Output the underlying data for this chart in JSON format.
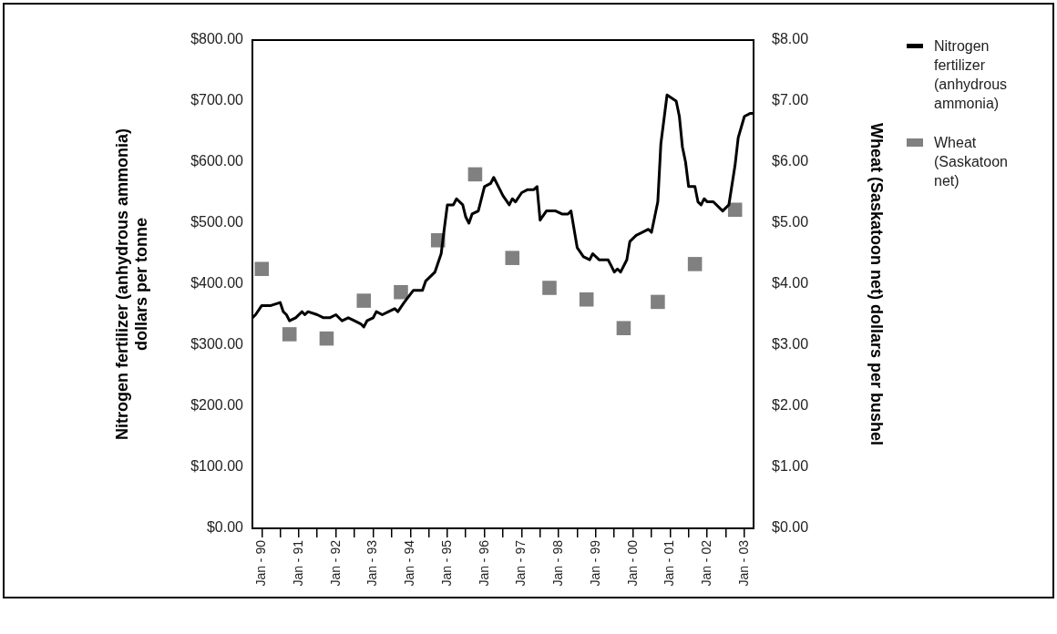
{
  "chart_data": {
    "type": "line",
    "ylabel": "Nitrogen fertilizer (anhydrous ammonia)\ndollars per tonne",
    "y2label": "Wheat (Saskatoon net) dollars per bushel",
    "x": [
      "1989-10",
      "1989-11",
      "1990-01",
      "1990-04",
      "1990-07",
      "1990-08",
      "1990-09",
      "1990-10",
      "1990-12",
      "1991-02",
      "1991-03",
      "1991-04",
      "1991-07",
      "1991-09",
      "1991-11",
      "1992-01",
      "1992-03",
      "1992-05",
      "1992-07",
      "1992-09",
      "1992-10",
      "1992-11",
      "1993-01",
      "1993-02",
      "1993-04",
      "1993-06",
      "1993-08",
      "1993-09",
      "1993-11",
      "1994-02",
      "1994-05",
      "1994-06",
      "1994-09",
      "1994-11",
      "1994-12",
      "1995-01",
      "1995-03",
      "1995-04",
      "1995-06",
      "1995-07",
      "1995-08",
      "1995-09",
      "1995-11",
      "1996-01",
      "1996-03",
      "1996-04",
      "1996-05",
      "1996-07",
      "1996-09",
      "1996-10",
      "1996-11",
      "1997-01",
      "1997-03",
      "1997-05",
      "1997-06",
      "1997-07",
      "1997-09",
      "1997-12",
      "1998-02",
      "1998-04",
      "1998-05",
      "1998-07",
      "1998-09",
      "1998-11",
      "1998-12",
      "1999-02",
      "1999-05",
      "1999-06",
      "1999-07",
      "1999-08",
      "1999-09",
      "1999-11",
      "1999-12",
      "2000-02",
      "2000-06",
      "2000-07",
      "2000-08",
      "2000-09",
      "2000-10",
      "2000-12",
      "2001-03",
      "2001-04",
      "2001-05",
      "2001-06",
      "2001-07",
      "2001-09",
      "2001-10",
      "2001-11",
      "2001-12",
      "2002-01",
      "2002-03",
      "2002-06",
      "2002-08",
      "2002-10",
      "2002-11",
      "2003-01",
      "2003-03",
      "2003-04"
    ],
    "series": [
      {
        "name": "Nitrogen fertilizer (anhydrous ammonia)",
        "color": "#000000",
        "values": [
          345,
          350,
          365,
          365,
          370,
          355,
          350,
          340,
          345,
          355,
          350,
          355,
          350,
          345,
          345,
          350,
          340,
          345,
          340,
          335,
          330,
          340,
          345,
          355,
          350,
          355,
          360,
          355,
          370,
          390,
          390,
          405,
          420,
          450,
          490,
          530,
          530,
          540,
          530,
          510,
          500,
          515,
          520,
          560,
          565,
          575,
          565,
          545,
          530,
          540,
          535,
          550,
          555,
          555,
          560,
          505,
          520,
          520,
          515,
          515,
          520,
          460,
          445,
          440,
          450,
          440,
          440,
          430,
          420,
          425,
          420,
          440,
          470,
          480,
          490,
          485,
          510,
          535,
          630,
          710,
          700,
          675,
          625,
          600,
          560,
          560,
          535,
          530,
          540,
          535,
          535,
          520,
          530,
          595,
          640,
          675,
          680,
          680
        ]
      },
      {
        "name": "Wheat (Saskatoon net)",
        "type": "scatter",
        "axis": "y2",
        "marker": "square",
        "color": "#808080",
        "x": [
          "1990-01",
          "1990-10",
          "1991-10",
          "1992-10",
          "1993-10",
          "1994-10",
          "1995-10",
          "1996-10",
          "1997-10",
          "1998-10",
          "1999-10",
          "2000-09",
          "2001-09",
          "2002-10"
        ],
        "values": [
          4.25,
          3.18,
          3.11,
          3.73,
          3.87,
          4.72,
          5.8,
          4.43,
          3.94,
          3.75,
          3.28,
          3.71,
          4.33,
          5.22
        ]
      }
    ],
    "xlim": [
      "1989-10",
      "2003-04"
    ],
    "xticks": [
      {
        "value": "1990-01",
        "label": "Jan - 90"
      },
      {
        "value": "1990-07",
        "label": null
      },
      {
        "value": "1991-01",
        "label": "Jan - 91"
      },
      {
        "value": "1991-07",
        "label": null
      },
      {
        "value": "1992-01",
        "label": "Jan - 92"
      },
      {
        "value": "1992-07",
        "label": null
      },
      {
        "value": "1993-01",
        "label": "Jan - 93"
      },
      {
        "value": "1993-07",
        "label": null
      },
      {
        "value": "1994-01",
        "label": "Jan - 94"
      },
      {
        "value": "1994-07",
        "label": null
      },
      {
        "value": "1995-01",
        "label": "Jan - 95"
      },
      {
        "value": "1995-07",
        "label": null
      },
      {
        "value": "1996-01",
        "label": "Jan - 96"
      },
      {
        "value": "1996-07",
        "label": null
      },
      {
        "value": "1997-01",
        "label": "Jan - 97"
      },
      {
        "value": "1997-07",
        "label": null
      },
      {
        "value": "1998-01",
        "label": "Jan - 98"
      },
      {
        "value": "1998-07",
        "label": null
      },
      {
        "value": "1999-01",
        "label": "Jan - 99"
      },
      {
        "value": "1999-07",
        "label": null
      },
      {
        "value": "2000-01",
        "label": "Jan - 00"
      },
      {
        "value": "2000-07",
        "label": null
      },
      {
        "value": "2001-01",
        "label": "Jan - 01"
      },
      {
        "value": "2001-07",
        "label": null
      },
      {
        "value": "2002-01",
        "label": "Jan - 02"
      },
      {
        "value": "2002-07",
        "label": null
      },
      {
        "value": "2003-01",
        "label": "Jan - 03"
      }
    ],
    "ylim": [
      0,
      800
    ],
    "yticks": [
      {
        "value": 0,
        "label": "$0.00"
      },
      {
        "value": 100,
        "label": "$100.00"
      },
      {
        "value": 200,
        "label": "$200.00"
      },
      {
        "value": 300,
        "label": "$300.00"
      },
      {
        "value": 400,
        "label": "$400.00"
      },
      {
        "value": 500,
        "label": "$500.00"
      },
      {
        "value": 600,
        "label": "$600.00"
      },
      {
        "value": 700,
        "label": "$700.00"
      },
      {
        "value": 800,
        "label": "$800.00"
      }
    ],
    "y2lim": [
      0,
      8
    ],
    "y2ticks": [
      {
        "value": 0,
        "label": "$0.00"
      },
      {
        "value": 1,
        "label": "$1.00"
      },
      {
        "value": 2,
        "label": "$2.00"
      },
      {
        "value": 3,
        "label": "$3.00"
      },
      {
        "value": 4,
        "label": "$4.00"
      },
      {
        "value": 5,
        "label": "$5.00"
      },
      {
        "value": 6,
        "label": "$6.00"
      },
      {
        "value": 7,
        "label": "$7.00"
      },
      {
        "value": 8,
        "label": "$8.00"
      }
    ],
    "grid": false,
    "legend": "right"
  }
}
